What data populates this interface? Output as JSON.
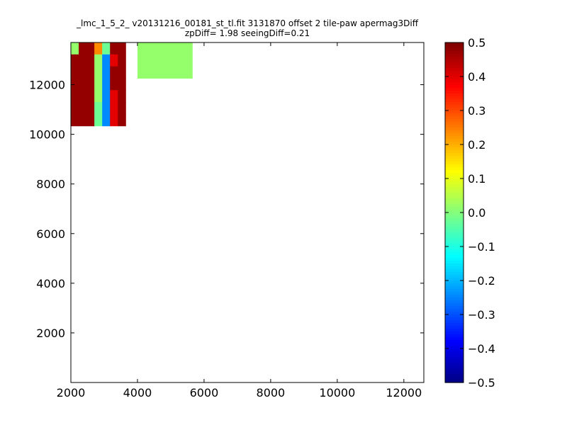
{
  "chart_data": {
    "type": "heatmap",
    "title_line1": "_lmc_1_5_2_ v20131216_00181_st_tl.fit 3131870 offset 2 tile-paw apermag3Diff",
    "title_line2": "zpDiff= 1.98 seeingDiff=0.21",
    "xlim": [
      2000,
      12600
    ],
    "ylim": [
      0,
      13700
    ],
    "xticks": [
      2000,
      4000,
      6000,
      8000,
      10000,
      12000
    ],
    "yticks": [
      2000,
      4000,
      6000,
      8000,
      10000,
      12000
    ],
    "colorbar": {
      "vmin": -0.5,
      "vmax": 0.5,
      "colormap": "jet",
      "ticks": [
        "0.5",
        "0.4",
        "0.3",
        "0.2",
        "0.1",
        "0.0",
        "−0.1",
        "−0.2",
        "−0.3",
        "−0.4",
        "−0.5"
      ]
    },
    "columns": [
      {
        "x0": 2000,
        "n": 7,
        "vals": [
          [
            0.02,
            0.48,
            0.48,
            0.24,
            -0.02,
            0.48,
            0.48
          ],
          [
            0.48,
            0.48,
            0.48,
            0.02,
            -0.24,
            0.4,
            0.48
          ],
          [
            0.48,
            0.48,
            0.48,
            0.02,
            -0.24,
            0.48,
            0.48
          ],
          [
            0.48,
            0.48,
            0.48,
            0.02,
            -0.24,
            0.48,
            0.48
          ],
          [
            0.48,
            0.48,
            0.48,
            0.02,
            -0.24,
            0.4,
            0.48
          ],
          [
            0.48,
            0.48,
            0.48,
            -0.02,
            -0.24,
            0.4,
            0.48
          ],
          [
            0.48,
            0.48,
            0.48,
            -0.02,
            -0.24,
            0.4,
            0.48
          ]
        ]
      },
      {
        "x0": 4000,
        "n": 7,
        "vals": [
          [
            0.02,
            0.02,
            0.02,
            0.02,
            0.02,
            0.02,
            0.02
          ],
          [
            0.02,
            0.02,
            0.02,
            0.02,
            0.02,
            0.02,
            0.02
          ],
          [
            0.02,
            0.02,
            0.02,
            0.02,
            0.02,
            0.02,
            0.02
          ]
        ]
      }
    ]
  }
}
